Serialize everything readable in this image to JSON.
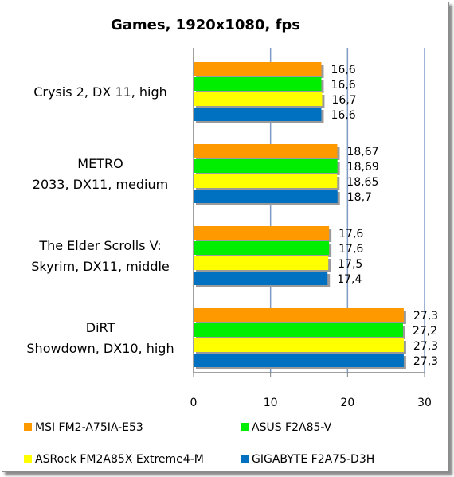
{
  "chart_data": {
    "type": "bar",
    "orientation": "horizontal",
    "title": "Games, 1920x1080, fps",
    "categories": [
      "Crysis 2, DX 11, high",
      "METRO 2033, DX11, medium",
      "The Elder Scrolls V: Skyrim, DX11, middle",
      "DiRT Showdown, DX10, high"
    ],
    "category_lines": [
      [
        "Crysis 2, DX 11, high"
      ],
      [
        "METRO",
        "2033, DX11, medium"
      ],
      [
        "The Elder Scrolls V:",
        "Skyrim, DX11, middle"
      ],
      [
        "DiRT",
        "Showdown, DX10, high"
      ]
    ],
    "series": [
      {
        "name": "MSI FM2-A75IA-E53",
        "color": "#ff9900",
        "values": [
          16.6,
          18.67,
          17.6,
          27.3
        ],
        "labels": [
          "16,6",
          "18,67",
          "17,6",
          "27,3"
        ]
      },
      {
        "name": "ASUS F2A85-V",
        "color": "#00ee00",
        "values": [
          16.6,
          18.69,
          17.6,
          27.2
        ],
        "labels": [
          "16,6",
          "18,69",
          "17,6",
          "27,2"
        ]
      },
      {
        "name": "ASRock FM2A85X Extreme4-M",
        "color": "#ffff00",
        "values": [
          16.7,
          18.65,
          17.5,
          27.3
        ],
        "labels": [
          "16,7",
          "18,65",
          "17,5",
          "27,3"
        ]
      },
      {
        "name": "GIGABYTE F2A75-D3H",
        "color": "#0070c0",
        "values": [
          16.6,
          18.7,
          17.4,
          27.3
        ],
        "labels": [
          "16,6",
          "18,7",
          "17,4",
          "27,3"
        ]
      }
    ],
    "xlim": [
      0,
      30
    ],
    "xticks": [
      0,
      10,
      20,
      30
    ],
    "grid": true,
    "legend_position": "bottom"
  }
}
